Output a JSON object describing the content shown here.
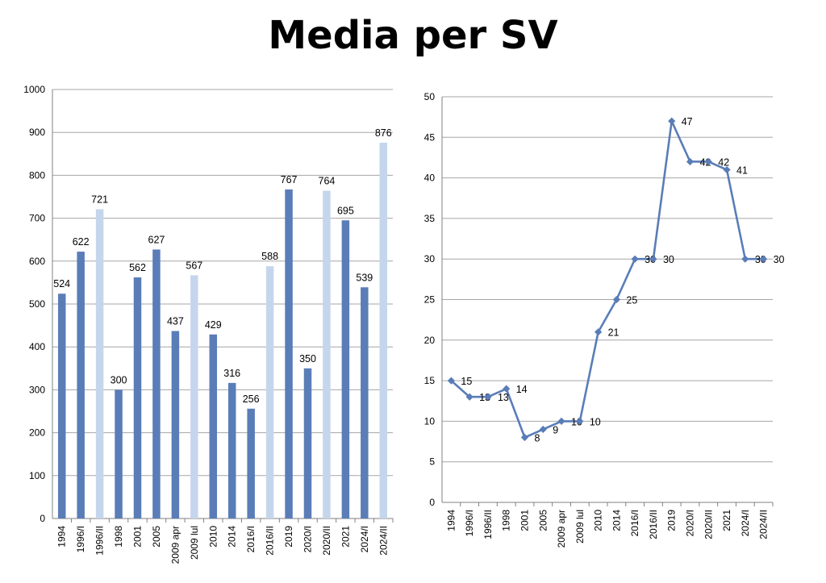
{
  "title": "Media per SV",
  "colors": {
    "dark_bar": "#5a7db8",
    "light_bar": "#c5d6ec",
    "line": "#5a7db8",
    "grid": "#a6a6a6"
  },
  "chart_data": [
    {
      "type": "bar",
      "categories": [
        "1994",
        "1996/I",
        "1996/II",
        "1998",
        "2001",
        "2005",
        "2009 apr",
        "2009 lul",
        "2010",
        "2014",
        "2016/I",
        "2016/II",
        "2019",
        "2020/I",
        "2020/II",
        "2021",
        "2024/I",
        "2024/II"
      ],
      "values": [
        524,
        622,
        721,
        300,
        562,
        627,
        437,
        567,
        429,
        316,
        256,
        588,
        767,
        350,
        764,
        695,
        539,
        876
      ],
      "bar_colors": [
        "dark",
        "dark",
        "light",
        "dark",
        "dark",
        "dark",
        "dark",
        "light",
        "dark",
        "dark",
        "dark",
        "light",
        "dark",
        "dark",
        "light",
        "dark",
        "dark",
        "light"
      ],
      "ylim": [
        0,
        1000
      ],
      "yticks": [
        0,
        100,
        200,
        300,
        400,
        500,
        600,
        700,
        800,
        900,
        1000
      ],
      "grid": true,
      "xlabel": "",
      "ylabel": ""
    },
    {
      "type": "line",
      "categories": [
        "1994",
        "1996/I",
        "1996/II",
        "1998",
        "2001",
        "2005",
        "2009 apr",
        "2009 lul",
        "2010",
        "2014",
        "2016/I",
        "2016/II",
        "2019",
        "2020/I",
        "2020/II",
        "2021",
        "2024/I",
        "2024/II"
      ],
      "values": [
        15,
        13,
        13,
        14,
        8,
        9,
        10,
        10,
        21,
        25,
        30,
        30,
        47,
        42,
        42,
        41,
        30,
        30
      ],
      "ylim": [
        0,
        50
      ],
      "yticks": [
        0,
        5,
        10,
        15,
        20,
        25,
        30,
        35,
        40,
        45,
        50
      ],
      "grid": true,
      "marker": "diamond",
      "xlabel": "",
      "ylabel": ""
    }
  ]
}
